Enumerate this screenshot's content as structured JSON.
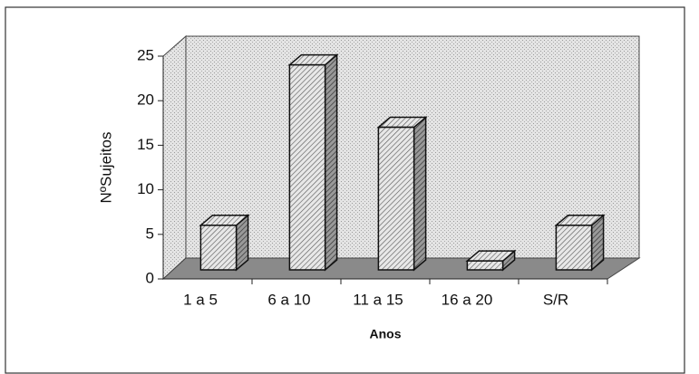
{
  "chart_data": {
    "type": "bar3d",
    "categories": [
      "1 a 5",
      "6 a 10",
      "11 a 15",
      "16 a 20",
      "S/R"
    ],
    "values": [
      5,
      23,
      16,
      1,
      5
    ],
    "ylim": [
      0,
      25
    ],
    "yticks": [
      0,
      5,
      10,
      15,
      20,
      25
    ],
    "ylabel": "NºSujeitos",
    "xlabel": "Anos"
  }
}
